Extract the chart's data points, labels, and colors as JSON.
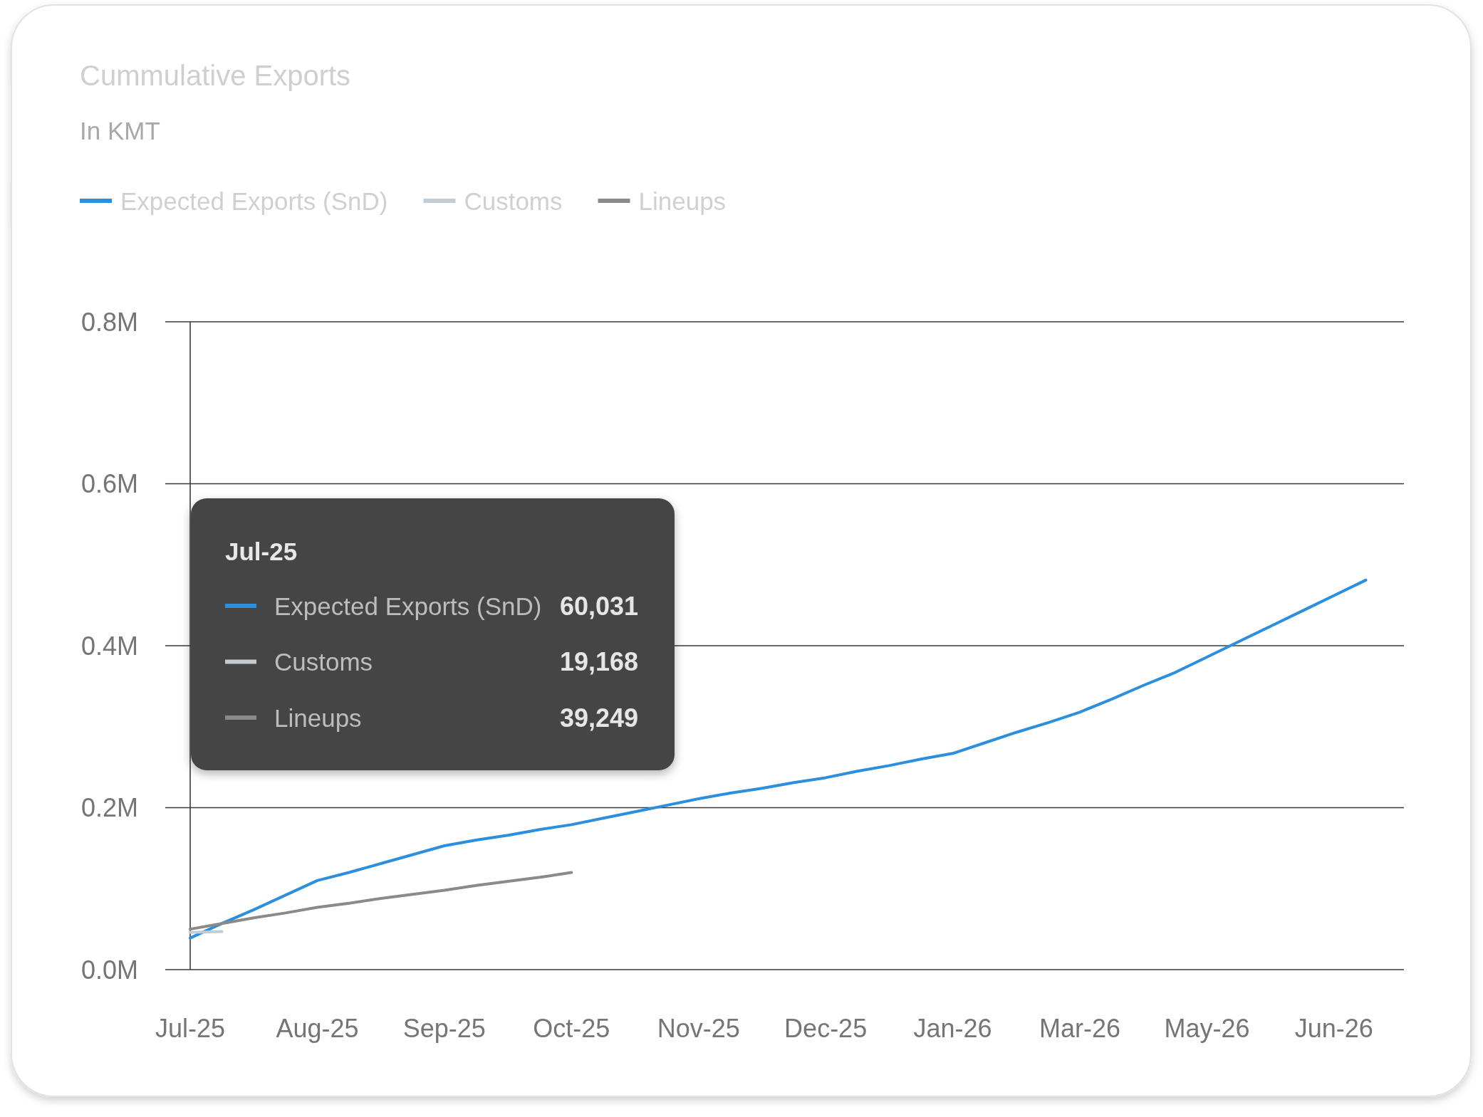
{
  "chart_data": {
    "type": "line",
    "title": "Cummulative Exports",
    "subtitle": "In KMT",
    "categories": [
      "Jul-25",
      null,
      null,
      null,
      "Aug-25",
      null,
      null,
      null,
      "Sep-25",
      null,
      null,
      null,
      "Oct-25",
      null,
      null,
      null,
      "Nov-25",
      null,
      null,
      null,
      "Dec-25",
      null,
      null,
      null,
      "Jan-26",
      null,
      null,
      null,
      "Mar-26",
      null,
      null,
      null,
      "May-26",
      null,
      null,
      null,
      "Jun-26",
      null
    ],
    "series": [
      {
        "name": "Expected Exports (SnD)",
        "color": "#2b8fdd",
        "values": [
          0.039,
          0.057,
          0.074,
          0.092,
          0.11,
          0.12,
          0.131,
          0.142,
          0.153,
          0.16,
          0.166,
          0.173,
          0.179,
          0.187,
          0.195,
          0.203,
          0.211,
          0.218,
          0.224,
          0.231,
          0.237,
          0.245,
          0.252,
          0.26,
          0.267,
          0.28,
          0.293,
          0.305,
          0.318,
          0.334,
          0.351,
          0.367,
          0.386,
          0.405,
          0.424,
          0.443,
          0.462,
          0.481
        ]
      },
      {
        "name": "Customs",
        "color": "#c3ccd3",
        "values": [
          0.046,
          0.047,
          null,
          null,
          null,
          null,
          null,
          null,
          null,
          null,
          null,
          null,
          null,
          null,
          null,
          null,
          null,
          null,
          null,
          null,
          null,
          null,
          null,
          null,
          null,
          null,
          null,
          null,
          null,
          null,
          null,
          null,
          null,
          null,
          null,
          null,
          null,
          null
        ]
      },
      {
        "name": "Lineups",
        "color": "#8a8a8a",
        "values": [
          0.05,
          0.057,
          0.064,
          0.07,
          0.077,
          0.082,
          0.088,
          0.093,
          0.098,
          0.104,
          0.109,
          0.114,
          0.12,
          null,
          null,
          null,
          null,
          null,
          null,
          null,
          null,
          null,
          null,
          null,
          null,
          null,
          null,
          null,
          null,
          null,
          null,
          null,
          null,
          null,
          null,
          null,
          null,
          null
        ]
      }
    ],
    "ylim": [
      0,
      0.8
    ],
    "yticks": [
      {
        "value": 0,
        "label": "0.0M"
      },
      {
        "value": 0.2,
        "label": "0.2M"
      },
      {
        "value": 0.4,
        "label": "0.4M"
      },
      {
        "value": 0.6,
        "label": "0.6M"
      },
      {
        "value": 0.8,
        "label": "0.8M"
      }
    ],
    "grid": "y",
    "legend": "top left",
    "annotations": [
      "Jul-25",
      "Expected Exports (SnD)",
      "60,031",
      "Customs",
      "19,168",
      "Lineups",
      "39,249"
    ]
  }
}
